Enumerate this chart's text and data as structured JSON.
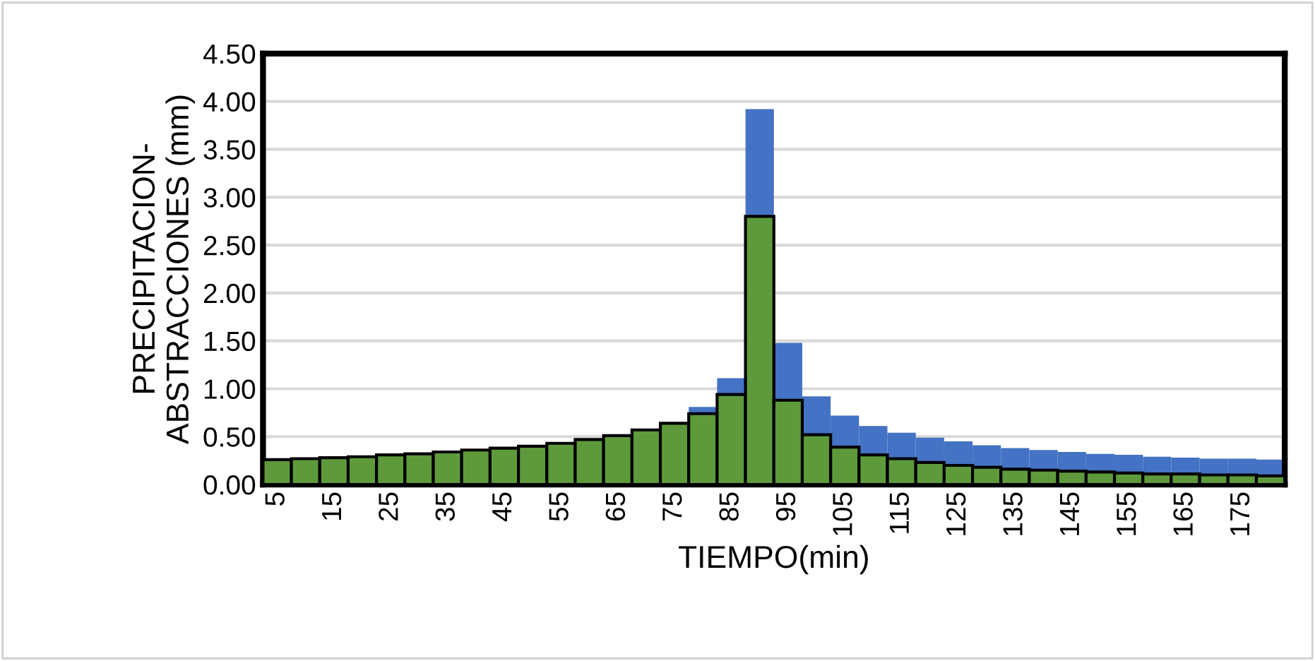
{
  "chart_data": {
    "type": "bar",
    "xlabel": "TIEMPO(min)",
    "ylabel": "PRECIPITACION-\nABSTRACCIONES (mm)",
    "categories": [
      "5",
      null,
      "15",
      null,
      "25",
      null,
      "35",
      null,
      "45",
      null,
      "55",
      null,
      "65",
      null,
      "75",
      null,
      "85",
      null,
      "95",
      null,
      "105",
      null,
      "115",
      null,
      "125",
      null,
      "135",
      null,
      "145",
      null,
      "155",
      null,
      "165",
      null,
      "175",
      null
    ],
    "series": [
      {
        "color": "#5e9a3c",
        "values": [
          0.26,
          0.27,
          0.28,
          0.29,
          0.31,
          0.32,
          0.34,
          0.36,
          0.38,
          0.4,
          0.43,
          0.47,
          0.51,
          0.57,
          0.64,
          0.74,
          0.94,
          2.8,
          0.88,
          0.52,
          0.39,
          0.31,
          0.27,
          0.23,
          0.2,
          0.18,
          0.16,
          0.15,
          0.14,
          0.13,
          0.12,
          0.11,
          0.11,
          0.1,
          0.1,
          0.09
        ]
      },
      {
        "color": "#4472c4",
        "values": [
          null,
          null,
          null,
          null,
          null,
          null,
          null,
          null,
          null,
          null,
          null,
          null,
          null,
          null,
          null,
          0.07,
          0.17,
          1.12,
          0.6,
          0.4,
          0.33,
          0.3,
          0.27,
          0.26,
          0.25,
          0.23,
          0.22,
          0.21,
          0.2,
          0.19,
          0.19,
          0.18,
          0.17,
          0.17,
          0.17,
          0.17
        ]
      }
    ],
    "stacked": true,
    "ylim": [
      0,
      4.5
    ],
    "yticks": [
      {
        "value": 0,
        "label": "0.00"
      },
      {
        "value": 0.5,
        "label": "0.50"
      },
      {
        "value": 1,
        "label": "1.00"
      },
      {
        "value": 1.5,
        "label": "1.50"
      },
      {
        "value": 2,
        "label": "2.00"
      },
      {
        "value": 2.5,
        "label": "2.50"
      },
      {
        "value": 3,
        "label": "3.00"
      },
      {
        "value": 3.5,
        "label": "3.50"
      },
      {
        "value": 4,
        "label": "4.00"
      },
      {
        "value": 4.5,
        "label": "4.50"
      }
    ],
    "grid": "y"
  }
}
